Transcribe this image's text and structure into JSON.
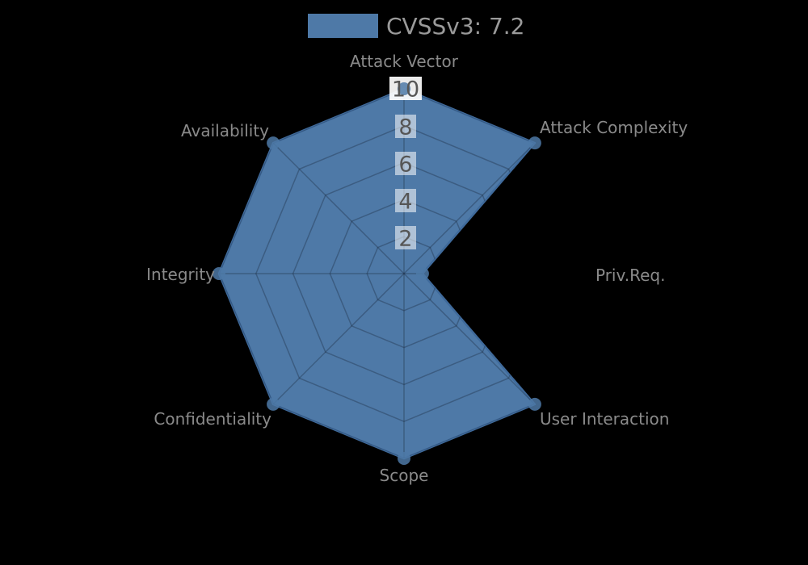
{
  "chart_data": {
    "type": "radar",
    "title": "",
    "categories": [
      "Attack Vector",
      "Attack Complexity",
      "Priv.Req.",
      "User Interaction",
      "Scope",
      "Confidentiality",
      "Integrity",
      "Availability"
    ],
    "series": [
      {
        "name": "CVSSv3: 7.2",
        "values": [
          10,
          10,
          1,
          10,
          10,
          10,
          10,
          10
        ]
      }
    ],
    "radial_ticks": [
      2,
      4,
      6,
      8,
      10
    ],
    "rlim": [
      0,
      10
    ],
    "grid": true,
    "legend_position": "top-center",
    "colors": {
      "background": "#000000",
      "fill": "#4e79a7",
      "edge": "#3f6a9b",
      "grid_line": "rgba(25,40,60,0.35)",
      "marker": "rgba(78,121,167,0.85)",
      "tick_label": "#565656",
      "tick_box": "rgba(255,255,255,0.55)",
      "tick_box_top": "rgba(255,255,255,0.92)",
      "category_label": "#8a8a8a",
      "legend_text": "#9a9a9a"
    }
  },
  "legend": {
    "label": "CVSSv3: 7.2"
  }
}
